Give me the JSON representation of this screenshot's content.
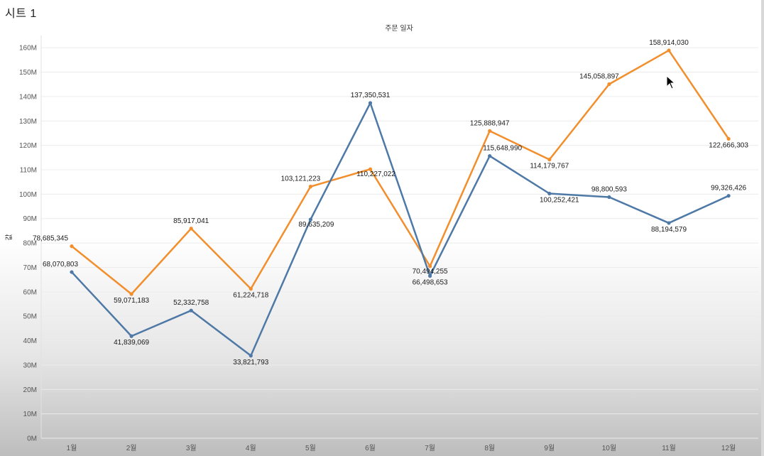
{
  "sheet": {
    "title": "시트 1"
  },
  "chart_data": {
    "type": "line",
    "title": "주문 일자",
    "xlabel": "",
    "ylabel": "값",
    "categories": [
      "1월",
      "2월",
      "3월",
      "4월",
      "5월",
      "6월",
      "7월",
      "8월",
      "9월",
      "10월",
      "11월",
      "12월"
    ],
    "ylim": [
      0,
      165000000
    ],
    "yticks": [
      {
        "value": 0,
        "label": "0M"
      },
      {
        "value": 10000000,
        "label": "10M"
      },
      {
        "value": 20000000,
        "label": "20M"
      },
      {
        "value": 30000000,
        "label": "30M"
      },
      {
        "value": 40000000,
        "label": "40M"
      },
      {
        "value": 50000000,
        "label": "50M"
      },
      {
        "value": 60000000,
        "label": "60M"
      },
      {
        "value": 70000000,
        "label": "70M"
      },
      {
        "value": 80000000,
        "label": "80M"
      },
      {
        "value": 90000000,
        "label": "90M"
      },
      {
        "value": 100000000,
        "label": "100M"
      },
      {
        "value": 110000000,
        "label": "110M"
      },
      {
        "value": 120000000,
        "label": "120M"
      },
      {
        "value": 130000000,
        "label": "130M"
      },
      {
        "value": 140000000,
        "label": "140M"
      },
      {
        "value": 150000000,
        "label": "150M"
      },
      {
        "value": 160000000,
        "label": "160M"
      }
    ],
    "grid": true,
    "legend": "none",
    "series": [
      {
        "color": "#f28e2b",
        "values": [
          78685345,
          59071183,
          85917041,
          61224718,
          103121223,
          110227022,
          70494255,
          125888947,
          114179767,
          145058897,
          158914030,
          122666303
        ],
        "labels": [
          "78,685,345",
          "59,071,183",
          "85,917,041",
          "61,224,718",
          "103,121,223",
          "110,227,022",
          "70,494,255",
          "125,888,947",
          "114,179,767",
          "145,058,897",
          "158,914,030",
          "122,666,303"
        ]
      },
      {
        "color": "#4e79a7",
        "values": [
          68070803,
          41839069,
          52332758,
          33821793,
          89635209,
          137350531,
          66498653,
          115648990,
          100252421,
          98800593,
          88194579,
          99326426
        ],
        "labels": [
          "68,070,803",
          "41,839,069",
          "52,332,758",
          "33,821,793",
          "89,635,209",
          "137,350,531",
          "66,498,653",
          "115,648,990",
          "100,252,421",
          "98,800,593",
          "88,194,579",
          "99,326,426"
        ]
      }
    ]
  }
}
